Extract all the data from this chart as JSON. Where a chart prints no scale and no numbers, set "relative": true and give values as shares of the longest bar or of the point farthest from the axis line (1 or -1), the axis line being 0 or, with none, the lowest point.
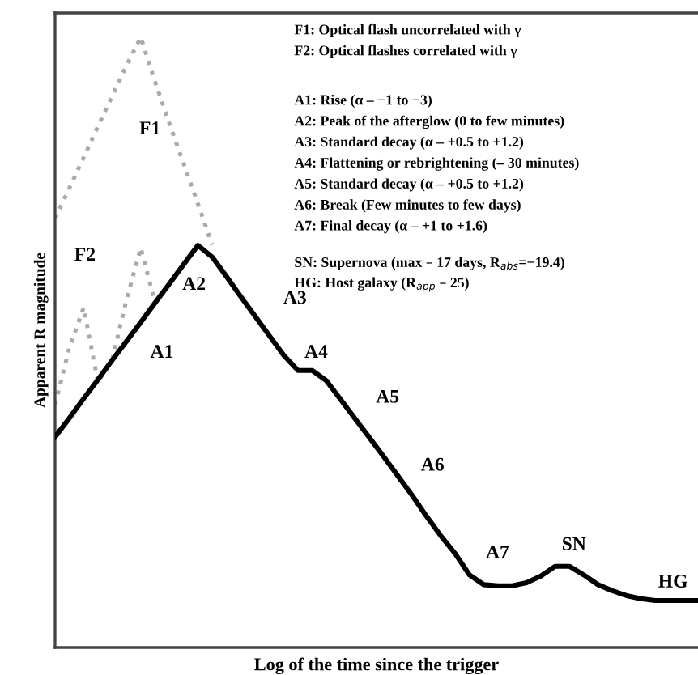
{
  "chart_data": {
    "type": "line",
    "relative": true,
    "xlabel": "Log of the time since the trigger",
    "ylabel": "Apparent R magnitude",
    "categories": [
      null,
      null,
      null,
      null,
      null,
      null,
      null,
      null,
      null,
      null,
      null,
      null,
      null,
      null,
      null,
      null,
      null,
      null,
      null,
      null,
      null,
      null,
      null,
      null,
      null,
      null,
      null,
      null,
      null,
      null,
      null,
      null,
      null,
      null,
      null,
      null,
      null,
      null,
      null,
      null,
      null,
      null,
      null,
      null,
      null,
      null
    ],
    "series": [
      {
        "color": "#000000",
        "line_style": "solid",
        "values": [
          0.345,
          0.376,
          0.408,
          0.439,
          0.471,
          0.502,
          0.533,
          0.565,
          0.596,
          0.628,
          0.659,
          0.64,
          0.608,
          0.575,
          0.543,
          0.511,
          0.479,
          0.454,
          0.454,
          0.437,
          0.406,
          0.375,
          0.344,
          0.313,
          0.281,
          0.249,
          0.215,
          0.183,
          0.154,
          0.119,
          0.103,
          0.101,
          0.101,
          0.106,
          0.117,
          0.133,
          0.133,
          0.119,
          0.103,
          0.093,
          0.085,
          0.08,
          0.077,
          0.077,
          0.077,
          0.077
        ]
      },
      {
        "color": "#aaaaaa",
        "line_style": "dotted",
        "values": [
          0.703,
          0.753,
          0.803,
          0.854,
          0.904,
          0.954,
          1.0,
          0.927,
          0.859,
          0.793,
          0.727,
          0.66,
          null,
          null,
          null,
          null,
          null,
          null,
          null,
          null,
          null,
          null,
          null,
          null,
          null,
          null,
          null,
          null,
          null,
          null,
          null,
          null,
          null,
          null,
          null,
          null,
          null,
          null,
          null,
          null,
          null,
          null,
          null,
          null,
          null,
          null
        ]
      },
      {
        "color": "#aaaaaa",
        "line_style": "dotted",
        "values": [
          0.398,
          0.491,
          0.557,
          0.435,
          0.472,
          0.57,
          0.655,
          0.565,
          null,
          null,
          null,
          null,
          null,
          null,
          null,
          null,
          null,
          null,
          null,
          null,
          null,
          null,
          null,
          null,
          null,
          null,
          null,
          null,
          null,
          null,
          null,
          null,
          null,
          null,
          null,
          null,
          null,
          null,
          null,
          null,
          null,
          null,
          null,
          null,
          null,
          null
        ]
      }
    ],
    "annotations": [
      "F1",
      "F2",
      "A1",
      "A2",
      "A3",
      "A4",
      "A5",
      "A6",
      "A7",
      "SN",
      "HG",
      "F1: Optical flash uncorrelated with γ",
      "F2: Optical flashes correlated with γ",
      "A1: Rise (α – −1 to −3)",
      "A2: Peak of the afterglow (0 to few minutes)",
      "A3: Standard decay (α – +0.5 to +1.2)",
      "A4: Flattening or rebrightening (– 30 minutes)",
      "A5: Standard decay (α – +0.5 to +1.2)",
      "A6: Break (Few minutes to few days)",
      "A7: Final decay (α – +1 to +1.6)",
      "SN: Supernova (max – 17 days, R$_{abs}$=−19.4)",
      "HG: Host galaxy (R$_{app}$ – 25)"
    ],
    "marker": "none",
    "grid": false
  }
}
